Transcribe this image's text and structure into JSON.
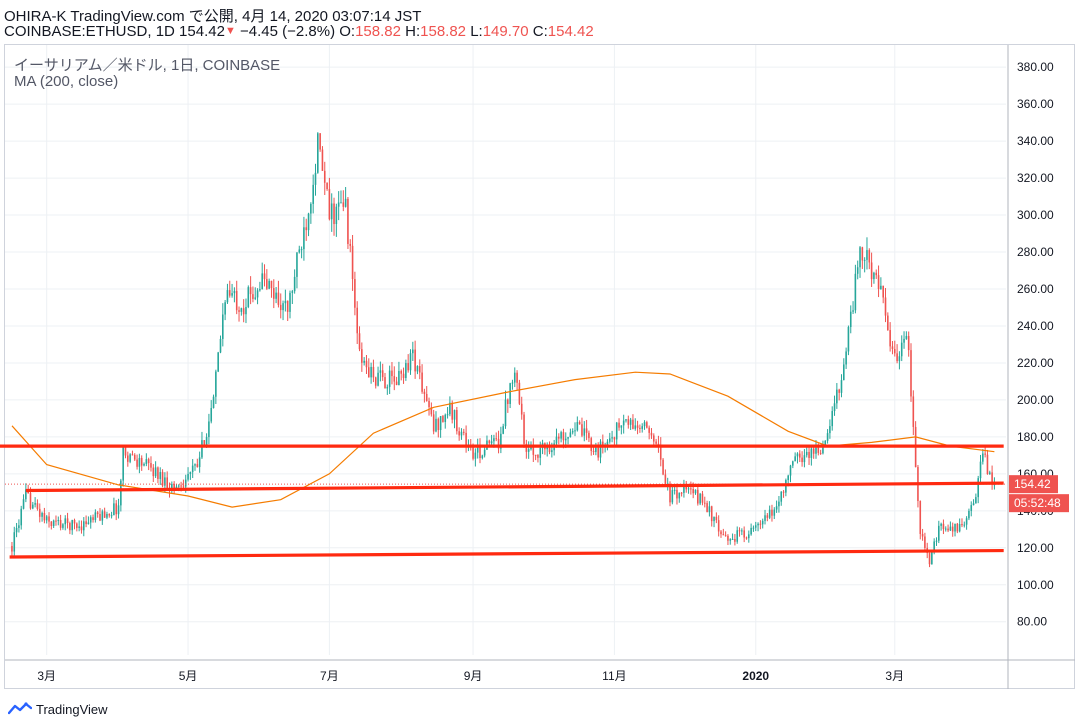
{
  "header": {
    "line1": "OHIRA-K TradingView.com で公開, 4月 14, 2020 03:07:14 JST",
    "symbol": "COINBASE:ETHUSD, 1D",
    "last": "154.42",
    "down_arrow": "▼",
    "change": "−4.45 (−2.8%)",
    "o_label": "O:",
    "o_val": "158.82",
    "h_label": "H:",
    "h_val": "158.82",
    "l_label": "L:",
    "l_val": "149.70",
    "c_label": "C:",
    "c_val": "154.42"
  },
  "legend": {
    "title": "イーサリアム／米ドル, 1日, COINBASE",
    "indicator": "MA (200, close)"
  },
  "footer": {
    "brand": "TradingView"
  },
  "colors": {
    "up": "#26a69a",
    "down": "#ef5350",
    "ma": "#f57c00",
    "hline": "#ff2a10",
    "grid": "#edf0f4",
    "axis_text": "#131722"
  },
  "chart_data": {
    "type": "candlestick",
    "ylim": [
      62,
      392
    ],
    "y_ticks": [
      "80.00",
      "100.00",
      "120.00",
      "140.00",
      "160.00",
      "180.00",
      "200.00",
      "220.00",
      "240.00",
      "260.00",
      "280.00",
      "300.00",
      "320.00",
      "340.00",
      "360.00",
      "380.00"
    ],
    "x_ticks": [
      "3月",
      "5月",
      "7月",
      "9月",
      "11月",
      "2020",
      "3月"
    ],
    "price_label": "154.42",
    "countdown_label": "05:52:48",
    "close_anchors": [
      {
        "t": "2019-02-14",
        "v": 121
      },
      {
        "t": "2019-02-20",
        "v": 148
      },
      {
        "t": "2019-03-01",
        "v": 134
      },
      {
        "t": "2019-03-15",
        "v": 132
      },
      {
        "t": "2019-04-01",
        "v": 142
      },
      {
        "t": "2019-04-03",
        "v": 172
      },
      {
        "t": "2019-04-15",
        "v": 163
      },
      {
        "t": "2019-04-25",
        "v": 152
      },
      {
        "t": "2019-05-05",
        "v": 164
      },
      {
        "t": "2019-05-12",
        "v": 199
      },
      {
        "t": "2019-05-17",
        "v": 258
      },
      {
        "t": "2019-05-25",
        "v": 252
      },
      {
        "t": "2019-06-02",
        "v": 265
      },
      {
        "t": "2019-06-13",
        "v": 248
      },
      {
        "t": "2019-06-22",
        "v": 305
      },
      {
        "t": "2019-06-26",
        "v": 338
      },
      {
        "t": "2019-07-01",
        "v": 300
      },
      {
        "t": "2019-07-08",
        "v": 305
      },
      {
        "t": "2019-07-14",
        "v": 223
      },
      {
        "t": "2019-07-20",
        "v": 212
      },
      {
        "t": "2019-07-30",
        "v": 210
      },
      {
        "t": "2019-08-06",
        "v": 225
      },
      {
        "t": "2019-08-15",
        "v": 185
      },
      {
        "t": "2019-08-22",
        "v": 195
      },
      {
        "t": "2019-09-01",
        "v": 170
      },
      {
        "t": "2019-09-12",
        "v": 178
      },
      {
        "t": "2019-09-19",
        "v": 220
      },
      {
        "t": "2019-09-24",
        "v": 170
      },
      {
        "t": "2019-10-05",
        "v": 176
      },
      {
        "t": "2019-10-15",
        "v": 186
      },
      {
        "t": "2019-10-25",
        "v": 172
      },
      {
        "t": "2019-11-05",
        "v": 188
      },
      {
        "t": "2019-11-18",
        "v": 182
      },
      {
        "t": "2019-11-25",
        "v": 147
      },
      {
        "t": "2019-12-01",
        "v": 152
      },
      {
        "t": "2019-12-10",
        "v": 145
      },
      {
        "t": "2019-12-18",
        "v": 124
      },
      {
        "t": "2020-01-01",
        "v": 130
      },
      {
        "t": "2020-01-09",
        "v": 140
      },
      {
        "t": "2020-01-18",
        "v": 168
      },
      {
        "t": "2020-01-31",
        "v": 175
      },
      {
        "t": "2020-02-08",
        "v": 220
      },
      {
        "t": "2020-02-15",
        "v": 280
      },
      {
        "t": "2020-02-22",
        "v": 268
      },
      {
        "t": "2020-03-01",
        "v": 220
      },
      {
        "t": "2020-03-06",
        "v": 240
      },
      {
        "t": "2020-03-12",
        "v": 130
      },
      {
        "t": "2020-03-16",
        "v": 111
      },
      {
        "t": "2020-03-20",
        "v": 130
      },
      {
        "t": "2020-03-28",
        "v": 130
      },
      {
        "t": "2020-04-04",
        "v": 142
      },
      {
        "t": "2020-04-08",
        "v": 170
      },
      {
        "t": "2020-04-13",
        "v": 154.42
      }
    ],
    "ma200_anchors": [
      {
        "t": "2019-02-14",
        "v": 186
      },
      {
        "t": "2019-03-01",
        "v": 165
      },
      {
        "t": "2019-04-01",
        "v": 154
      },
      {
        "t": "2019-05-01",
        "v": 148
      },
      {
        "t": "2019-05-20",
        "v": 142
      },
      {
        "t": "2019-06-10",
        "v": 146
      },
      {
        "t": "2019-07-01",
        "v": 160
      },
      {
        "t": "2019-07-20",
        "v": 182
      },
      {
        "t": "2019-08-15",
        "v": 196
      },
      {
        "t": "2019-09-15",
        "v": 204
      },
      {
        "t": "2019-10-15",
        "v": 211
      },
      {
        "t": "2019-11-10",
        "v": 215
      },
      {
        "t": "2019-11-25",
        "v": 214
      },
      {
        "t": "2019-12-20",
        "v": 202
      },
      {
        "t": "2020-01-15",
        "v": 183
      },
      {
        "t": "2020-02-01",
        "v": 175
      },
      {
        "t": "2020-02-20",
        "v": 177
      },
      {
        "t": "2020-03-10",
        "v": 180
      },
      {
        "t": "2020-03-25",
        "v": 175
      },
      {
        "t": "2020-04-13",
        "v": 172
      }
    ],
    "horizontal_lines": [
      {
        "from": "2019-02-08",
        "to": "2020-04-17",
        "v1": 175,
        "v2": 175
      },
      {
        "from": "2019-02-20",
        "to": "2020-04-17",
        "v1": 151,
        "v2": 155
      },
      {
        "from": "2019-02-13",
        "to": "2020-04-17",
        "v1": 115,
        "v2": 118.5
      }
    ]
  }
}
